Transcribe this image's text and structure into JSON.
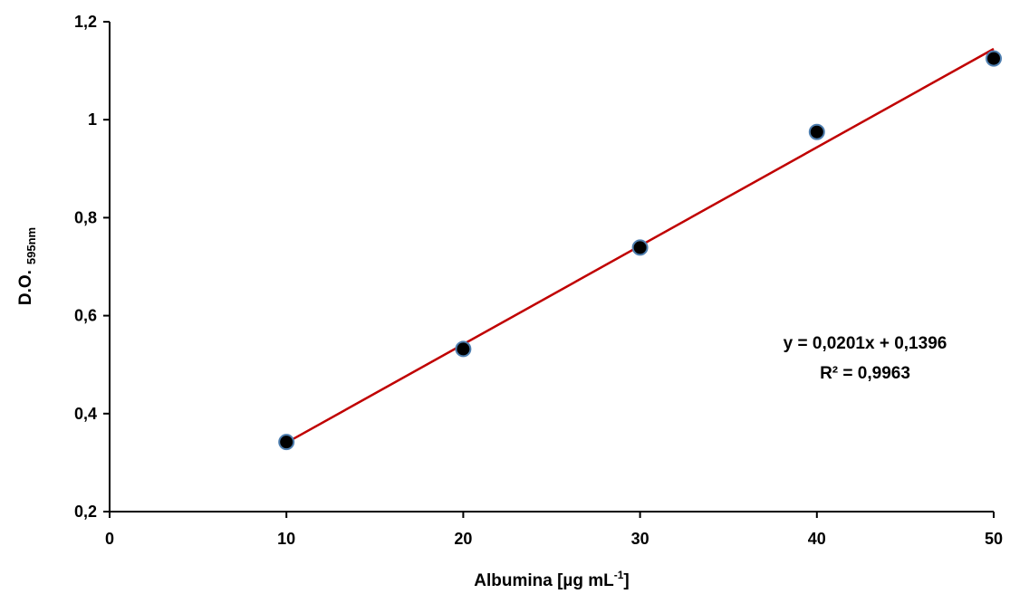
{
  "chart_data": {
    "type": "scatter",
    "x": [
      10,
      20,
      30,
      40,
      50
    ],
    "series": [
      {
        "values": [
          0.342,
          0.532,
          0.739,
          0.975,
          1.125
        ],
        "marker_color": "#000000",
        "marker_edge": "#4f7fb0"
      }
    ],
    "trendline": {
      "slope": 0.0201,
      "intercept": 0.1396,
      "x_range": [
        10,
        50
      ],
      "color": "#c00000"
    },
    "annotations": {
      "equation": "y = 0,0201x + 0,1396",
      "r2": "R² = 0,9963"
    },
    "xlabel": {
      "main": "Albumina [µg mL",
      "sup": "-1",
      "tail": "]"
    },
    "ylabel": {
      "main": "D.O.",
      "sub": "595nm"
    },
    "xlim": [
      0,
      50
    ],
    "ylim": [
      0.2,
      1.2
    ],
    "x_ticks": [
      {
        "value": 0,
        "label": "0"
      },
      {
        "value": 10,
        "label": "10"
      },
      {
        "value": 20,
        "label": "20"
      },
      {
        "value": 30,
        "label": "30"
      },
      {
        "value": 40,
        "label": "40"
      },
      {
        "value": 50,
        "label": "50"
      }
    ],
    "y_ticks": [
      {
        "value": 0.2,
        "label": "0,2"
      },
      {
        "value": 0.4,
        "label": "0,4"
      },
      {
        "value": 0.6,
        "label": "0,6"
      },
      {
        "value": 0.8,
        "label": "0,8"
      },
      {
        "value": 1.0,
        "label": "1"
      },
      {
        "value": 1.2,
        "label": "1,2"
      }
    ],
    "grid": false,
    "legend": "none"
  }
}
